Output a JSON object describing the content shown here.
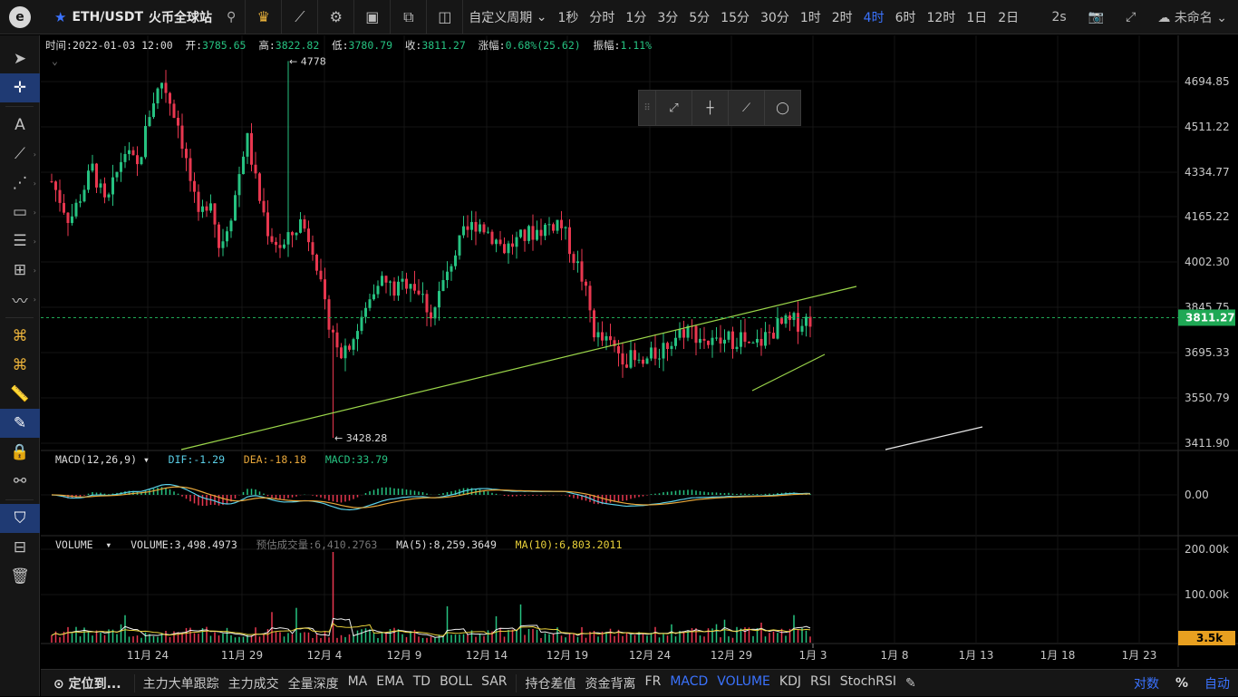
{
  "topbar": {
    "logo_glyph": "e",
    "symbol": "ETH/USDT",
    "exchange": "火币全球站",
    "custom_period": "自定义周期",
    "periods": [
      "1秒",
      "分时",
      "1分",
      "3分",
      "5分",
      "15分",
      "30分",
      "1时",
      "2时",
      "4时",
      "6时",
      "12时",
      "1日",
      "2日"
    ],
    "active_period": "4时",
    "refresh": "2s",
    "layout_name": "未命名"
  },
  "ohlc": {
    "time_label": "时间:",
    "time": "2022-01-03 12:00",
    "open_label": "开:",
    "open": "3785.65",
    "high_label": "高:",
    "high": "3822.82",
    "low_label": "低:",
    "low": "3780.79",
    "close_label": "收:",
    "close": "3811.27",
    "change_label": "涨幅:",
    "change": "0.68%(25.62)",
    "amplitude_label": "振幅:",
    "amplitude": "1.11%"
  },
  "price_axis": {
    "ticks": [
      "4694.85",
      "4511.22",
      "4334.77",
      "4165.22",
      "4002.30",
      "3845.75",
      "3695.33",
      "3550.79",
      "3411.90"
    ],
    "current_price": "3811.27",
    "high_marker": "4778",
    "low_marker": "3428.28"
  },
  "macd": {
    "name": "MACD(12,26,9)",
    "dif_label": "DIF:",
    "dif": "-1.29",
    "dea_label": "DEA:",
    "dea": "-18.18",
    "macd_label": "MACD:",
    "macd": "33.79",
    "axis_tick": "0.00"
  },
  "volume": {
    "name": "VOLUME",
    "volume_label": "VOLUME:",
    "volume": "3,498.4973",
    "est_label": "预估成交量:",
    "est": "6,410.2763",
    "ma5_label": "MA(5):",
    "ma5": "8,259.3649",
    "ma10_label": "MA(10):",
    "ma10": "6,803.2011",
    "axis_ticks": [
      "200.00k",
      "100.00k"
    ],
    "current": "3.5k"
  },
  "time_axis": [
    "11月 24",
    "11月 29",
    "12月 4",
    "12月 9",
    "12月 14",
    "12月 19",
    "12月 24",
    "12月 29",
    "1月 3",
    "1月 8",
    "1月 13",
    "1月 18",
    "1月 23"
  ],
  "bottombar": {
    "locate": "定位到...",
    "indicators": [
      "主力大单跟踪",
      "主力成交",
      "全量深度",
      "MA",
      "EMA",
      "TD",
      "BOLL",
      "SAR",
      "持仓差值",
      "资金背离",
      "FR",
      "MACD",
      "VOLUME",
      "KDJ",
      "RSI",
      "StochRSI"
    ],
    "active_indicators": [
      "MACD",
      "VOLUME"
    ],
    "log_label": "对数",
    "pct_label": "%",
    "auto_label": "自动"
  },
  "colors": {
    "up": "#26c281",
    "down": "#e8374f",
    "accent": "#3b73ff",
    "trend": "#9bd64a",
    "price_tag": "#1fa855",
    "vol_tag": "#e8a020"
  }
}
